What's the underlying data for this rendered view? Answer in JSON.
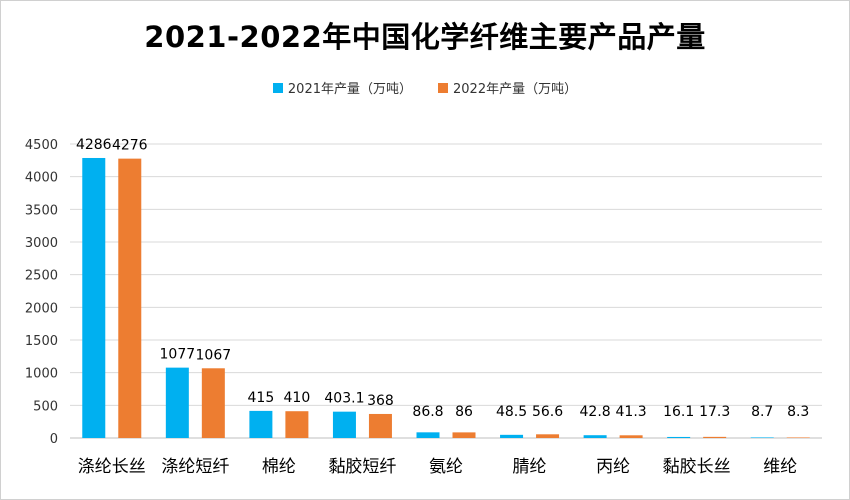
{
  "chart_data": {
    "type": "bar",
    "title": "2021-2022年中国化学纤维主要产品产量",
    "xlabel": "",
    "ylabel": "",
    "ylim": [
      0,
      4500
    ],
    "yticks": [
      0,
      500,
      1000,
      1500,
      2000,
      2500,
      3000,
      3500,
      4000,
      4500
    ],
    "grid": true,
    "legend_position": "top-center",
    "categories": [
      "涤纶长丝",
      "涤纶短纤",
      "棉纶",
      "黏胶短纤",
      "氨纶",
      "腈纶",
      "丙纶",
      "黏胶长丝",
      "维纶"
    ],
    "series": [
      {
        "name": "2021年产量（万吨）",
        "color": "#00b0f0",
        "values": [
          4286,
          1077,
          415,
          403.1,
          86.8,
          48.5,
          42.8,
          16.1,
          8.7
        ],
        "labels": [
          "4286",
          "1077",
          "415",
          "403.1",
          "86.8",
          "48.5",
          "42.8",
          "16.1",
          "8.7"
        ]
      },
      {
        "name": "2022年产量（万吨）",
        "color": "#ed7d31",
        "values": [
          4276,
          1067,
          410,
          368,
          86,
          56.6,
          41.3,
          17.3,
          8.3
        ],
        "labels": [
          "4276",
          "1067",
          "410",
          "368",
          "86",
          "56.6",
          "41.3",
          "17.3",
          "8.3"
        ]
      }
    ]
  }
}
